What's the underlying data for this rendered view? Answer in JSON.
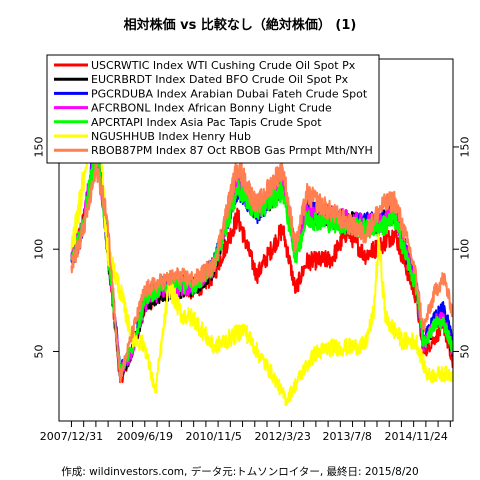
{
  "chart_data": {
    "type": "line",
    "title": "相対株価 vs 比較なし（絶対株価） (1)",
    "xlabel": "",
    "ylabel": "",
    "xlim": [
      "2007-10-01",
      "2015-08-20"
    ],
    "ylim": [
      16,
      193
    ],
    "y_ticks": [
      50,
      100,
      150
    ],
    "y_tick_labels": [
      "50",
      "100",
      "150"
    ],
    "x_ticks": [
      "2007-12-31",
      "2009-06-19",
      "2010-11-05",
      "2012-03-23",
      "2013-07-08",
      "2014-11-24"
    ],
    "x_tick_labels": [
      "2007/12/31",
      "2009/6/19",
      "2010/11/5",
      "2012/3/23",
      "2013/7/8",
      "2014/11/24"
    ],
    "grid": false,
    "legend_position": "top-left",
    "series": [
      {
        "name": "USCRWTIC Index WTI Cushing Crude Oil Spot Px",
        "color": "#ff0000",
        "x": [
          "2007-12-31",
          "2008-03-15",
          "2008-07-03",
          "2008-09-15",
          "2008-12-21",
          "2009-03-15",
          "2009-06-19",
          "2009-10-15",
          "2010-02-15",
          "2010-06-15",
          "2010-11-05",
          "2011-04-29",
          "2011-09-15",
          "2012-03-23",
          "2012-06-25",
          "2012-09-15",
          "2013-03-15",
          "2013-07-08",
          "2013-11-15",
          "2014-03-15",
          "2014-06-20",
          "2014-10-15",
          "2014-11-24",
          "2015-01-15",
          "2015-04-15",
          "2015-06-15",
          "2015-08-20"
        ],
        "y": [
          96,
          110,
          150,
          105,
          35,
          49,
          71,
          79,
          82,
          79,
          87,
          116,
          87,
          110,
          80,
          94,
          95,
          109,
          97,
          102,
          108,
          84,
          76,
          49,
          57,
          62,
          42
        ]
      },
      {
        "name": "EUCRBRDT Index Dated BFO Crude Oil Spot Px",
        "color": "#000000",
        "x": [
          "2007-12-31",
          "2008-03-15",
          "2008-07-03",
          "2008-09-15",
          "2008-12-21",
          "2009-03-15",
          "2009-06-19",
          "2009-10-15",
          "2010-02-15",
          "2010-06-15",
          "2010-11-05",
          "2011-04-29",
          "2011-09-15",
          "2012-03-23",
          "2012-06-25",
          "2012-09-15",
          "2013-03-15",
          "2013-07-08",
          "2013-11-15",
          "2014-03-15",
          "2014-06-20",
          "2014-10-15",
          "2014-11-24",
          "2015-01-15",
          "2015-04-15",
          "2015-06-15",
          "2015-08-20"
        ],
        "y": [
          96,
          108,
          150,
          102,
          39,
          48,
          72,
          78,
          80,
          81,
          90,
          133,
          118,
          130,
          99,
          118,
          115,
          114,
          112,
          113,
          118,
          90,
          83,
          52,
          64,
          65,
          48
        ]
      },
      {
        "name": "PGCRDUBA Index Arabian Dubai Fateh Crude Spot",
        "color": "#0000ff",
        "x": [
          "2007-12-31",
          "2008-03-15",
          "2008-07-03",
          "2008-09-15",
          "2008-12-21",
          "2009-03-15",
          "2009-06-19",
          "2009-10-15",
          "2010-02-15",
          "2010-06-15",
          "2010-11-05",
          "2011-04-29",
          "2011-09-15",
          "2012-03-23",
          "2012-06-25",
          "2012-09-15",
          "2013-03-15",
          "2013-07-08",
          "2013-11-15",
          "2014-03-15",
          "2014-06-20",
          "2014-10-15",
          "2014-11-24",
          "2015-01-15",
          "2015-04-15",
          "2015-06-15",
          "2015-08-20"
        ],
        "y": [
          94,
          107,
          155,
          106,
          42,
          50,
          77,
          82,
          84,
          82,
          93,
          130,
          117,
          133,
          98,
          120,
          116,
          112,
          113,
          114,
          120,
          93,
          83,
          55,
          67,
          71,
          55
        ]
      },
      {
        "name": "AFCRBONL Index African Bonny Light Crude",
        "color": "#ff00ff",
        "x": [
          "2007-12-31",
          "2008-03-15",
          "2008-07-03",
          "2008-09-15",
          "2008-12-21",
          "2009-03-15",
          "2009-06-19",
          "2009-10-15",
          "2010-02-15",
          "2010-06-15",
          "2010-11-05",
          "2011-04-29",
          "2011-09-15",
          "2012-03-23",
          "2012-06-25",
          "2012-09-15",
          "2013-03-15",
          "2013-07-08",
          "2013-11-15",
          "2014-03-15",
          "2014-06-20",
          "2014-10-15",
          "2014-11-24",
          "2015-01-15",
          "2015-04-15",
          "2015-06-15",
          "2015-08-20"
        ],
        "y": [
          98,
          110,
          152,
          104,
          40,
          49,
          73,
          80,
          81,
          82,
          91,
          134,
          119,
          131,
          100,
          118,
          116,
          114,
          112,
          113,
          118,
          90,
          82,
          52,
          65,
          66,
          49
        ]
      },
      {
        "name": "APCRTAPI Index Asia Pac Tapis Crude Spot",
        "color": "#00ff00",
        "x": [
          "2007-12-31",
          "2008-03-15",
          "2008-07-03",
          "2008-09-15",
          "2008-12-21",
          "2009-03-15",
          "2009-06-19",
          "2009-10-15",
          "2010-02-15",
          "2010-06-15",
          "2010-11-05",
          "2011-04-29",
          "2011-09-15",
          "2012-03-23",
          "2012-06-25",
          "2012-09-15",
          "2013-03-15",
          "2013-07-08",
          "2013-11-15",
          "2014-03-15",
          "2014-06-20",
          "2014-10-15",
          "2014-11-24",
          "2015-01-15",
          "2015-04-15",
          "2015-06-15",
          "2015-08-20"
        ],
        "y": [
          95,
          108,
          152,
          104,
          41,
          51,
          75,
          82,
          83,
          82,
          92,
          130,
          118,
          129,
          96,
          115,
          113,
          112,
          110,
          111,
          115,
          89,
          82,
          53,
          64,
          64,
          51
        ]
      },
      {
        "name": "NGUSHHUB Index Henry Hub",
        "color": "#ffff00",
        "x": [
          "2007-12-31",
          "2008-03-15",
          "2008-07-03",
          "2008-09-15",
          "2008-12-21",
          "2009-03-15",
          "2009-06-19",
          "2009-09-03",
          "2009-12-15",
          "2010-03-15",
          "2010-06-15",
          "2010-11-05",
          "2011-03-15",
          "2011-06-15",
          "2011-10-15",
          "2012-01-15",
          "2012-04-19",
          "2012-08-15",
          "2012-11-15",
          "2013-03-15",
          "2013-07-08",
          "2013-11-15",
          "2014-01-15",
          "2014-02-24",
          "2014-04-15",
          "2014-08-15",
          "2014-11-24",
          "2015-02-15",
          "2015-05-15",
          "2015-08-20"
        ],
        "y": [
          100,
          128,
          185,
          100,
          80,
          57,
          53,
          30,
          82,
          68,
          66,
          52,
          57,
          61,
          47,
          38,
          26,
          40,
          49,
          52,
          52,
          53,
          68,
          104,
          66,
          55,
          55,
          38,
          39,
          39
        ]
      },
      {
        "name": "RBOB87PM Index 87 Oct RBOB Gas Prmpt Mth/NYH",
        "color": "#ff7f50",
        "x": [
          "2007-12-31",
          "2008-03-15",
          "2008-07-03",
          "2008-09-15",
          "2008-12-21",
          "2009-03-15",
          "2009-06-19",
          "2009-10-15",
          "2010-02-15",
          "2010-06-15",
          "2010-11-05",
          "2011-04-29",
          "2011-09-15",
          "2012-03-23",
          "2012-06-25",
          "2012-09-15",
          "2013-03-15",
          "2013-07-08",
          "2013-11-15",
          "2014-03-15",
          "2014-06-20",
          "2014-10-15",
          "2014-11-24",
          "2015-01-15",
          "2015-04-15",
          "2015-06-15",
          "2015-08-20"
        ],
        "y": [
          92,
          106,
          140,
          116,
          37,
          58,
          80,
          84,
          87,
          85,
          92,
          141,
          121,
          140,
          101,
          127,
          118,
          113,
          107,
          121,
          124,
          98,
          86,
          61,
          80,
          86,
          68
        ]
      }
    ]
  },
  "footer": "作成: wildinvestors.com, データ元:トムソンロイター, 最終日: 2015/8/20"
}
